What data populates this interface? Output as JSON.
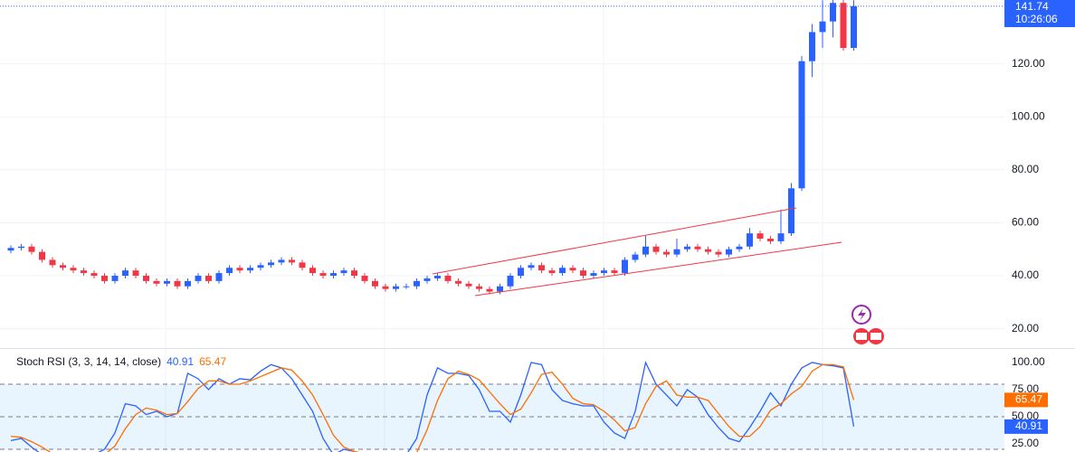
{
  "chart_data": [
    {
      "type": "candlestick",
      "open": [
        49.5,
        50.5,
        51,
        49,
        46,
        44,
        43,
        42,
        41,
        40,
        38,
        40,
        42,
        40,
        38,
        37,
        38,
        36,
        38,
        40,
        38,
        41,
        43,
        42,
        43,
        44,
        45,
        46,
        45,
        43,
        41,
        40,
        41,
        42,
        40,
        38,
        36,
        35,
        36,
        36,
        38,
        39,
        40,
        38,
        37,
        36,
        35,
        34,
        36,
        40,
        43,
        44,
        42,
        41,
        43,
        42,
        40,
        41,
        42,
        41,
        46,
        48,
        51,
        49,
        48,
        50,
        51,
        50,
        49,
        48,
        50,
        51,
        56,
        54,
        53,
        56,
        73,
        121,
        132,
        136,
        143,
        126
      ],
      "high": [
        51.5,
        52,
        52,
        50,
        47,
        45,
        44,
        43,
        42,
        41,
        41,
        43,
        43,
        41,
        39,
        39,
        39,
        39,
        41,
        41,
        42,
        44,
        44,
        44,
        45,
        46,
        47,
        47,
        46,
        44,
        42,
        42,
        43,
        43,
        41,
        39,
        37,
        37,
        37,
        39,
        40,
        41,
        41,
        39,
        38,
        37,
        36,
        37,
        41,
        44,
        45,
        45,
        43,
        44,
        44,
        43,
        42,
        43,
        43,
        47,
        49,
        55,
        52,
        50,
        54,
        52,
        52,
        51,
        50,
        51,
        52,
        58,
        57,
        55,
        65,
        75,
        123,
        135,
        144,
        145,
        145,
        144
      ],
      "low": [
        48.5,
        49.5,
        48,
        45,
        43,
        42,
        41,
        40,
        39,
        37,
        37,
        39,
        39,
        37,
        36,
        36,
        35,
        35,
        37,
        37,
        37,
        40,
        41,
        41,
        42,
        43,
        44,
        44,
        42,
        40,
        39,
        39,
        40,
        39,
        37,
        35,
        34,
        34,
        35,
        35,
        37,
        38,
        37,
        36,
        35,
        34,
        33,
        33,
        35,
        39,
        42,
        41,
        40,
        40,
        41,
        39,
        39,
        40,
        40,
        40,
        45,
        47,
        48,
        47,
        47,
        49,
        49,
        48,
        47,
        47,
        49,
        50,
        53,
        52,
        52,
        55,
        72,
        115,
        126,
        130,
        125,
        125
      ],
      "close": [
        50.5,
        51,
        49,
        46,
        44,
        43,
        42,
        41,
        40,
        38,
        40,
        42,
        40,
        38,
        37,
        38,
        36,
        38,
        40,
        38,
        41,
        43,
        42,
        43,
        44,
        45,
        46,
        45,
        43,
        41,
        40,
        41,
        42,
        40,
        38,
        36,
        35,
        36,
        36,
        38,
        39,
        40,
        38,
        37,
        36,
        35,
        34,
        36,
        40,
        43,
        44,
        42,
        41,
        43,
        42,
        40,
        41,
        42,
        41,
        46,
        48,
        51,
        49,
        48,
        50,
        51,
        50,
        49,
        48,
        50,
        51,
        56,
        54,
        53,
        56,
        73,
        121,
        132,
        136,
        143,
        126,
        141.74
      ],
      "up_color": "#2962ff",
      "down_color": "#f23645",
      "countdown": "10:26:06",
      "ylim": [
        12.7,
        144.1
      ],
      "yticks": [
        {
          "value": 20,
          "label": "20.00"
        },
        {
          "value": 40,
          "label": "40.00"
        },
        {
          "value": 60,
          "label": "60.00"
        },
        {
          "value": 80,
          "label": "80.00"
        },
        {
          "value": 100,
          "label": "100.00"
        },
        {
          "value": 120,
          "label": "120.00"
        }
      ],
      "grid": true
    },
    {
      "type": "line",
      "title": "Stoch RSI (3, 3, 14, 14, close)",
      "series": [
        {
          "color": "#2962ff",
          "values": [
            28,
            30,
            22,
            15,
            10,
            8,
            12,
            10,
            15,
            20,
            35,
            62,
            60,
            52,
            55,
            50,
            53,
            90,
            85,
            75,
            85,
            80,
            85,
            84,
            92,
            98,
            95,
            85,
            70,
            55,
            30,
            15,
            20,
            18,
            10,
            5,
            8,
            5,
            15,
            30,
            70,
            95,
            90,
            90,
            88,
            75,
            55,
            55,
            45,
            70,
            100,
            98,
            75,
            65,
            62,
            60,
            60,
            45,
            35,
            30,
            55,
            100,
            80,
            70,
            60,
            75,
            68,
            52,
            40,
            30,
            27,
            40,
            55,
            72,
            60,
            80,
            95,
            100,
            98,
            97,
            95,
            40.91
          ]
        },
        {
          "color": "#ff6d00",
          "values": [
            32,
            31,
            27,
            22,
            16,
            11,
            10,
            10,
            12,
            15,
            23,
            39,
            52,
            58,
            56,
            52,
            53,
            64,
            76,
            83,
            83,
            80,
            80,
            83,
            87,
            91,
            95,
            93,
            83,
            70,
            52,
            33,
            22,
            18,
            16,
            11,
            7,
            6,
            9,
            17,
            38,
            65,
            85,
            92,
            89,
            84,
            73,
            62,
            52,
            57,
            72,
            89,
            91,
            80,
            67,
            62,
            61,
            55,
            47,
            37,
            40,
            62,
            78,
            83,
            70,
            68,
            68,
            65,
            53,
            41,
            32,
            32,
            41,
            56,
            62,
            71,
            78,
            92,
            98,
            98,
            96,
            65.47
          ]
        }
      ],
      "bands": [
        80,
        50,
        20
      ],
      "ylim": [
        17.5,
        113.3
      ],
      "yticks": [
        {
          "value": 25,
          "label": "25.00"
        },
        {
          "value": 50,
          "label": "50.00"
        },
        {
          "value": 75,
          "label": "75.00"
        },
        {
          "value": 100,
          "label": "100.00"
        }
      ]
    }
  ]
}
